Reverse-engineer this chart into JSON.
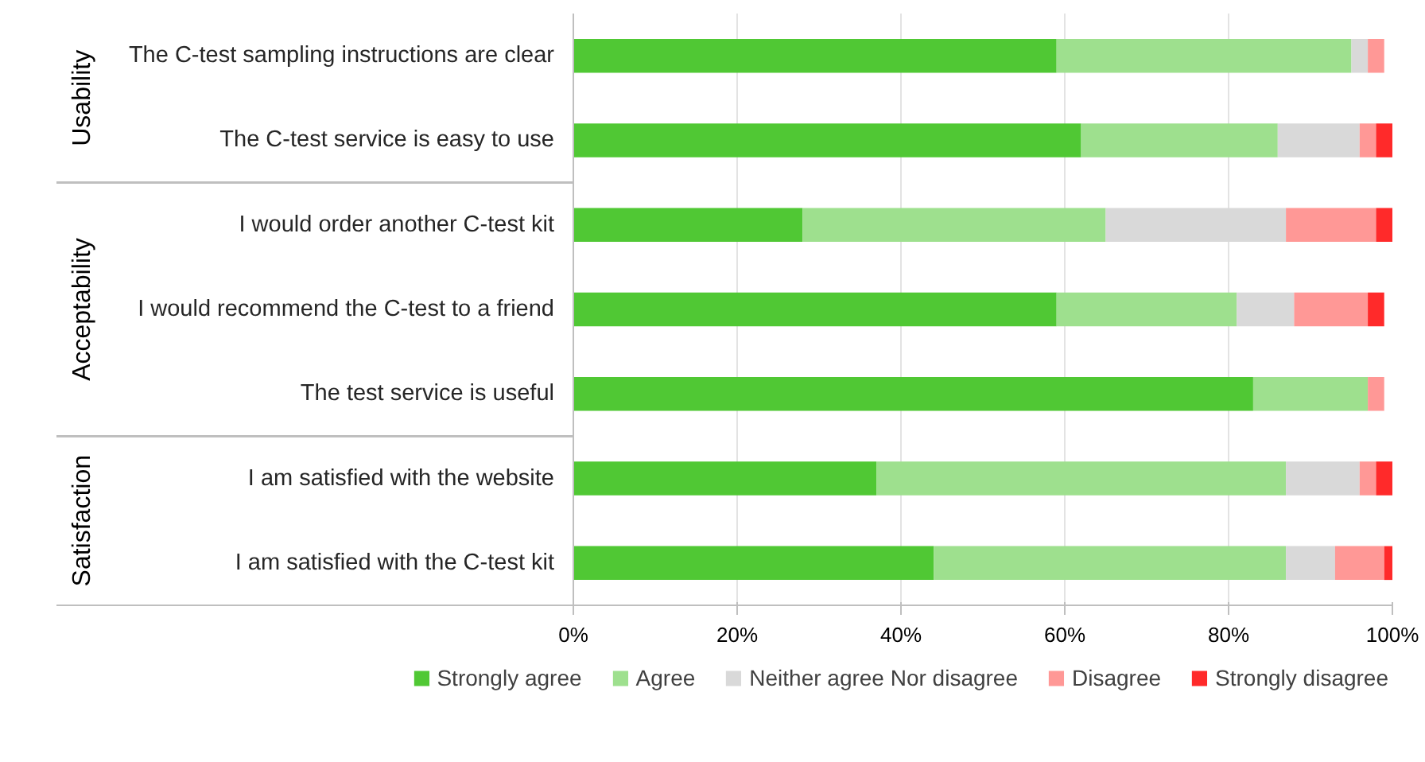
{
  "chart_data": {
    "type": "bar",
    "orientation": "horizontal",
    "stacked": true,
    "categories": [
      "The C-test sampling instructions are clear",
      "The C-test service is easy to use",
      "I would order another C-test kit",
      "I would recommend the C-test to a friend",
      "The test service is useful",
      "I am satisfied with the website",
      "I am satisfied with the C-test kit"
    ],
    "series": [
      {
        "name": "Strongly agree",
        "color": "#50c834",
        "values": [
          59,
          62,
          28,
          59,
          83,
          37,
          44
        ]
      },
      {
        "name": "Agree",
        "color": "#9ee08e",
        "values": [
          36,
          24,
          37,
          22,
          14,
          50,
          43
        ]
      },
      {
        "name": "Neither agree Nor disagree",
        "color": "#d9d9d9",
        "values": [
          2,
          10,
          22,
          7,
          0,
          9,
          6
        ]
      },
      {
        "name": "Disagree",
        "color": "#ff9896",
        "values": [
          2,
          2,
          11,
          9,
          2,
          2,
          6
        ]
      },
      {
        "name": "Strongly disagree",
        "color": "#ff2a2a",
        "values": [
          0,
          2,
          2,
          2,
          0,
          2,
          1
        ]
      }
    ],
    "xlim": [
      0,
      100
    ],
    "xticks": [
      {
        "value": 0,
        "label": "0%"
      },
      {
        "value": 20,
        "label": "20%"
      },
      {
        "value": 40,
        "label": "40%"
      },
      {
        "value": 60,
        "label": "60%"
      },
      {
        "value": 80,
        "label": "80%"
      },
      {
        "value": 100,
        "label": "100%"
      }
    ],
    "grid": "x",
    "legend": "bottom",
    "annotations": [
      "Usability",
      "Acceptability",
      "Satisfaction"
    ]
  }
}
